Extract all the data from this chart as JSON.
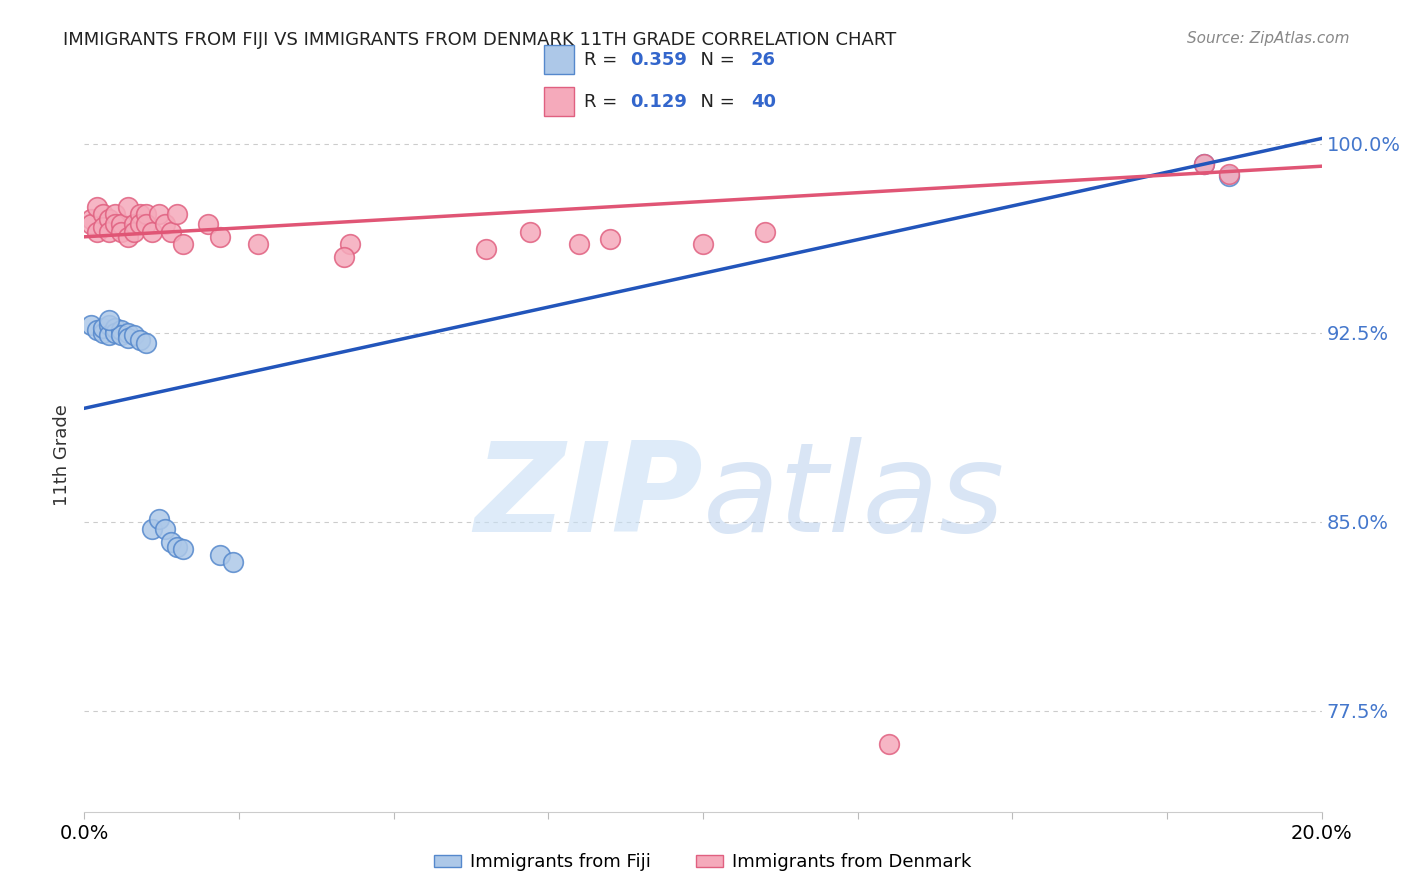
{
  "title": "IMMIGRANTS FROM FIJI VS IMMIGRANTS FROM DENMARK 11TH GRADE CORRELATION CHART",
  "source": "Source: ZipAtlas.com",
  "ylabel": "11th Grade",
  "watermark_zip": "ZIP",
  "watermark_atlas": "atlas",
  "xlim": [
    0.0,
    0.2
  ],
  "ylim": [
    0.735,
    1.018
  ],
  "yticks": [
    0.775,
    0.85,
    0.925,
    1.0
  ],
  "ytick_labels": [
    "77.5%",
    "85.0%",
    "92.5%",
    "100.0%"
  ],
  "xtick_left_label": "0.0%",
  "xtick_right_label": "20.0%",
  "fiji_color": "#adc8e8",
  "fiji_edge": "#5588cc",
  "denmark_color": "#f5aabb",
  "denmark_edge": "#e06080",
  "fiji_line_color": "#2255bb",
  "denmark_line_color": "#e05575",
  "fiji_R": 0.359,
  "fiji_N": 26,
  "denmark_R": 0.129,
  "denmark_N": 40,
  "fiji_line_x0": 0.0,
  "fiji_line_y0": 0.895,
  "fiji_line_x1": 0.2,
  "fiji_line_y1": 1.002,
  "denmark_line_x0": 0.0,
  "denmark_line_y0": 0.963,
  "denmark_line_x1": 0.2,
  "denmark_line_y1": 0.991,
  "fiji_scatter_x": [
    0.001,
    0.002,
    0.003,
    0.003,
    0.004,
    0.004,
    0.005,
    0.005,
    0.006,
    0.006,
    0.007,
    0.007,
    0.008,
    0.009,
    0.01,
    0.011,
    0.012,
    0.013,
    0.014,
    0.015,
    0.016,
    0.022,
    0.024,
    0.181,
    0.185,
    0.004
  ],
  "fiji_scatter_y": [
    0.928,
    0.926,
    0.925,
    0.927,
    0.928,
    0.924,
    0.927,
    0.925,
    0.926,
    0.924,
    0.925,
    0.923,
    0.924,
    0.922,
    0.921,
    0.847,
    0.851,
    0.847,
    0.842,
    0.84,
    0.839,
    0.837,
    0.834,
    0.992,
    0.987,
    0.93
  ],
  "denmark_scatter_x": [
    0.001,
    0.001,
    0.002,
    0.002,
    0.003,
    0.003,
    0.004,
    0.004,
    0.005,
    0.005,
    0.006,
    0.006,
    0.007,
    0.007,
    0.008,
    0.008,
    0.009,
    0.009,
    0.01,
    0.01,
    0.011,
    0.012,
    0.013,
    0.014,
    0.015,
    0.016,
    0.02,
    0.022,
    0.028,
    0.043,
    0.065,
    0.072,
    0.085,
    0.1,
    0.11,
    0.13,
    0.042,
    0.181,
    0.185,
    0.08
  ],
  "denmark_scatter_y": [
    0.97,
    0.968,
    0.975,
    0.965,
    0.972,
    0.967,
    0.97,
    0.965,
    0.972,
    0.968,
    0.968,
    0.965,
    0.975,
    0.963,
    0.968,
    0.965,
    0.972,
    0.968,
    0.972,
    0.968,
    0.965,
    0.972,
    0.968,
    0.965,
    0.972,
    0.96,
    0.968,
    0.963,
    0.96,
    0.96,
    0.958,
    0.965,
    0.962,
    0.96,
    0.965,
    0.762,
    0.955,
    0.992,
    0.988,
    0.96
  ],
  "background_color": "#ffffff",
  "grid_color": "#cccccc"
}
